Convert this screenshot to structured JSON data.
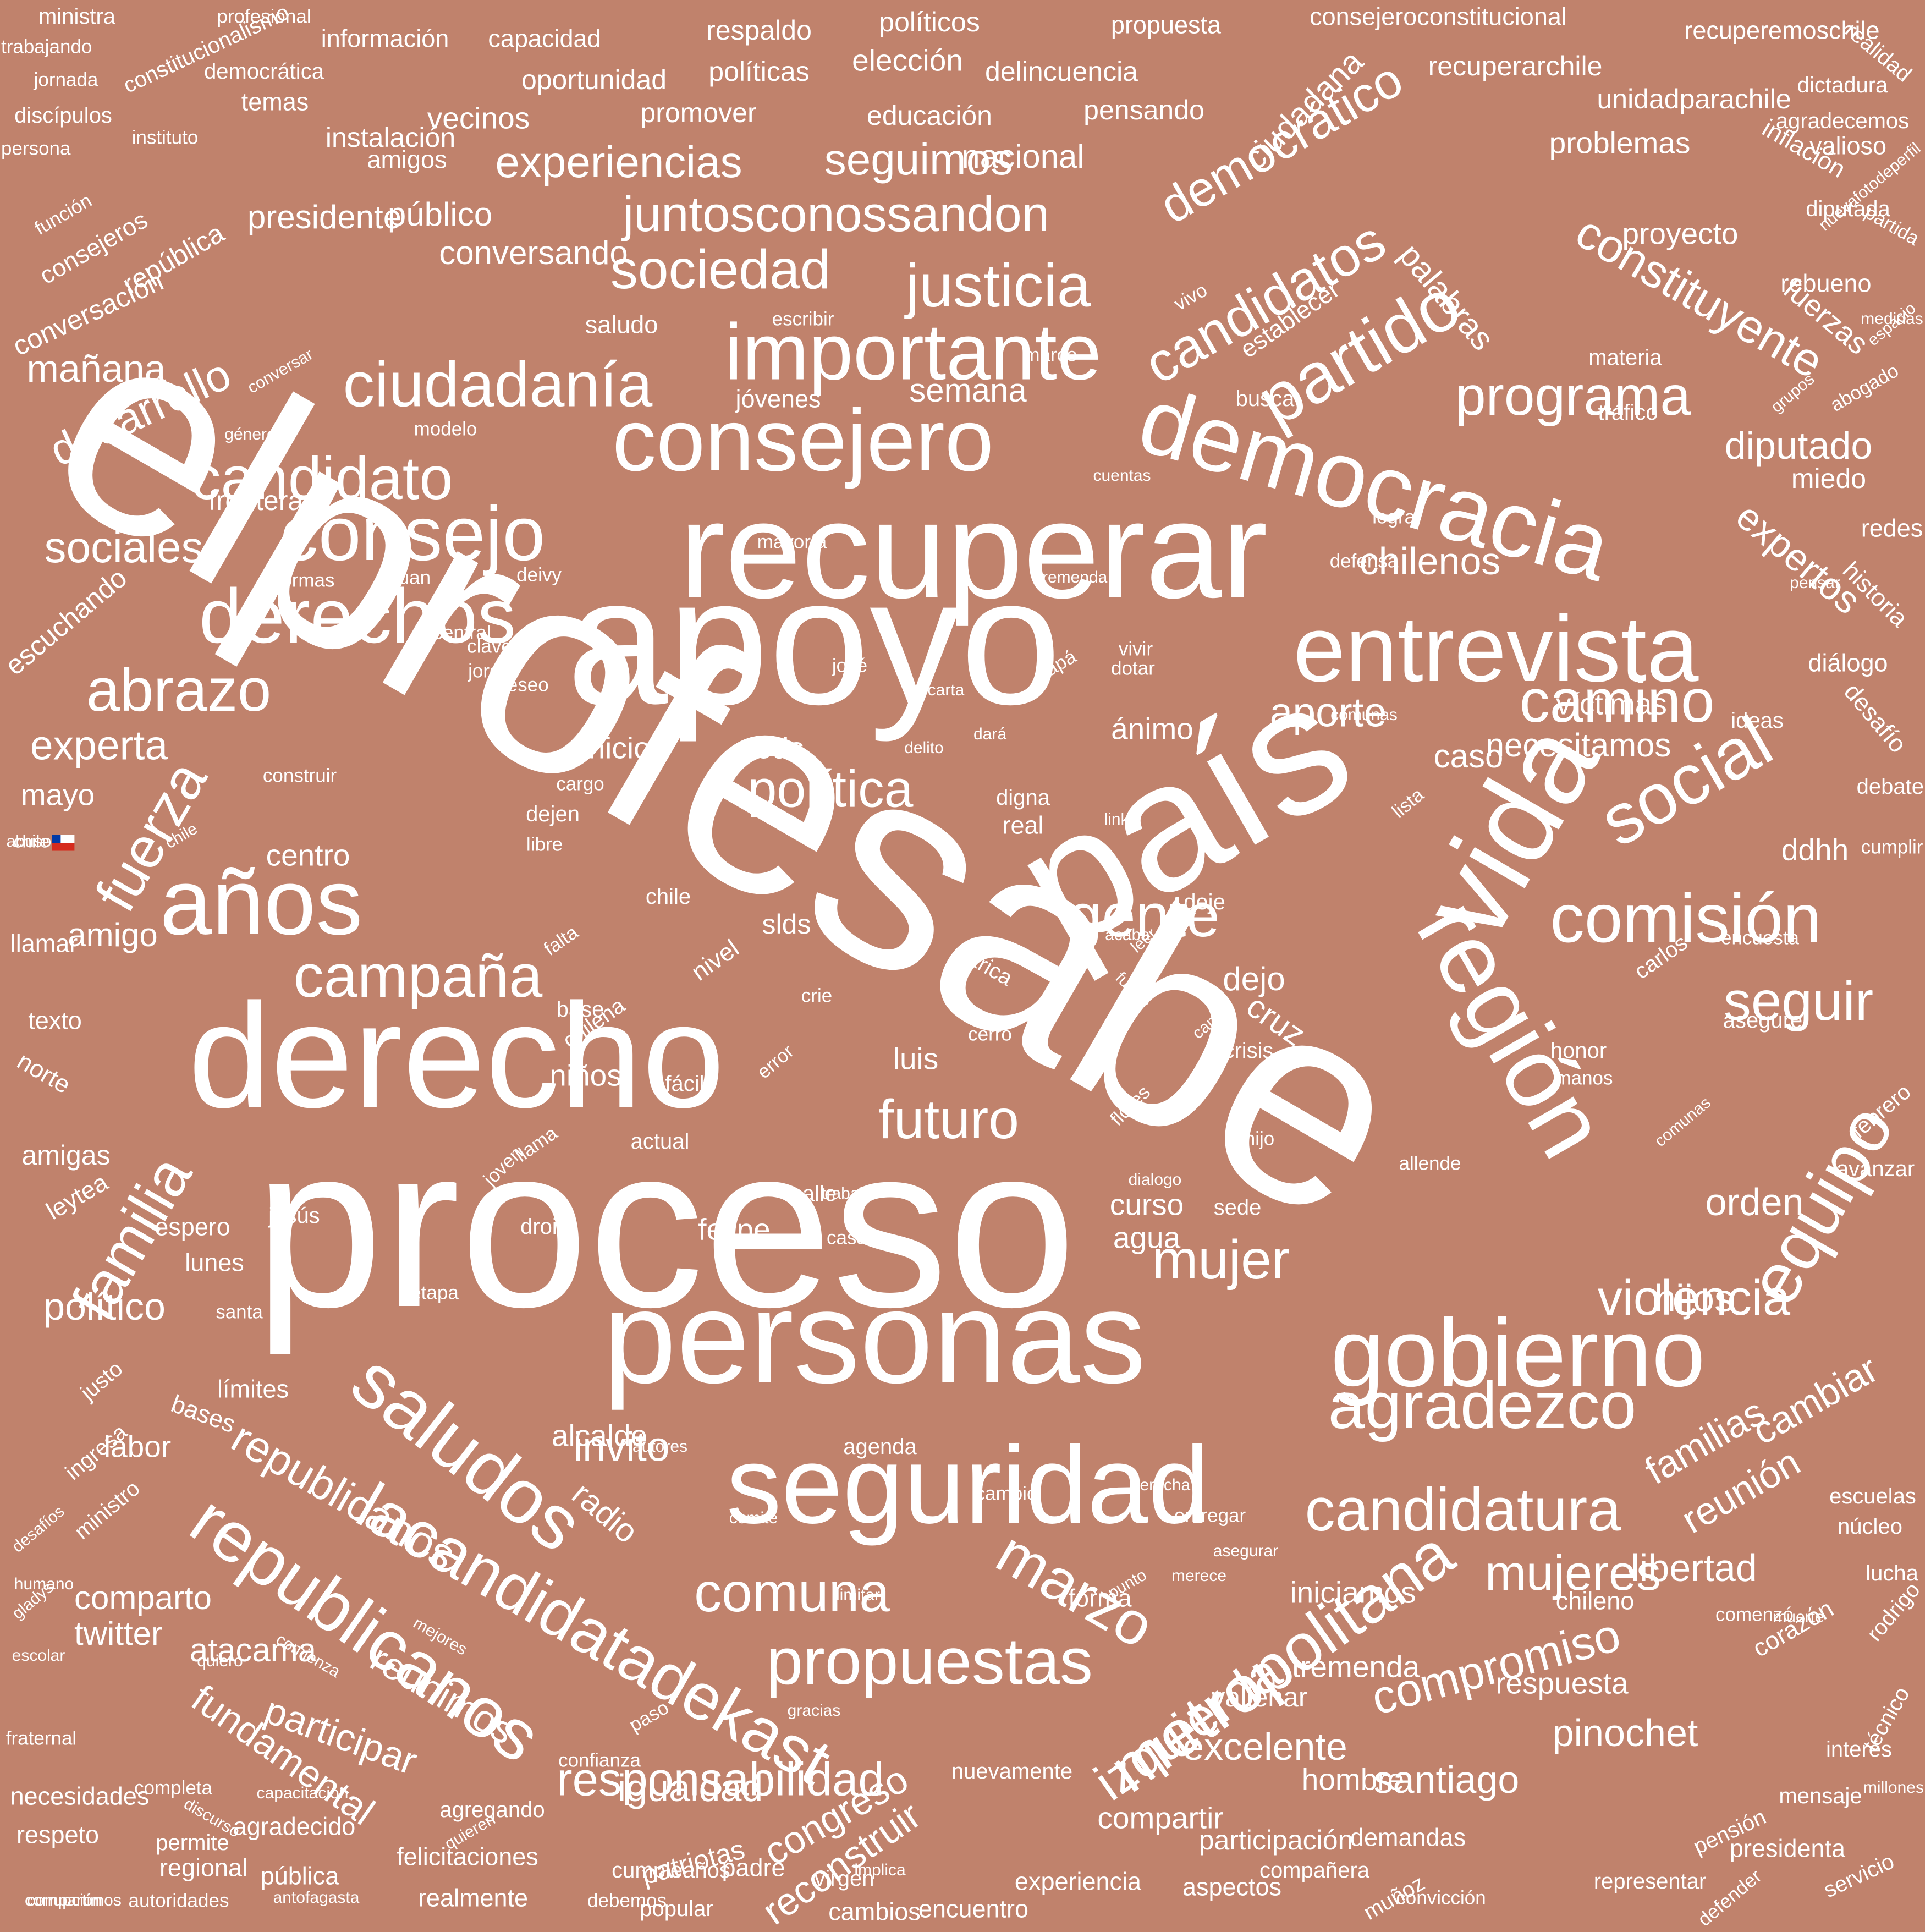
{
  "colors": {
    "background": "#c0826c",
    "text": "#ffffff"
  },
  "words": [
    "elprofesabe",
    "proceso",
    "apoyo",
    "recuperar",
    "país",
    "derecho",
    "personas",
    "consejero",
    "democracia",
    "seguridad",
    "vida",
    "región",
    "entrevista",
    "gobierno",
    "años",
    "social",
    "comisión",
    "consejo",
    "importante",
    "derechos",
    "agradezco",
    "saludos",
    "republicanos",
    "lacandidatadekast",
    "metropolitana",
    "propuestas",
    "candidatura",
    "equipo",
    "partido",
    "campaña",
    "ciudadanía",
    "candidato",
    "gente",
    "abrazo",
    "camino",
    "familia",
    "marzo",
    "comuna",
    "futuro",
    "candidatos",
    "responsabilidad",
    "juntosconossandon",
    "sociedad",
    "justicia",
    "política",
    "programa",
    "fuerza",
    "seguir",
    "violencia",
    "mujer",
    "compromiso",
    "izquierda",
    "mujeres",
    "constituyente",
    "democrático",
    "experiencias",
    "seguimos",
    "republicanos",
    "invito",
    "experta",
    "desarrollo",
    "sociales",
    "chilenos",
    "aporte",
    "mañana",
    "diputado",
    "expertos",
    "reunimos",
    "participar",
    "fundamental",
    "excelente",
    "reconstruir",
    "congreso",
    "igualdad",
    "santiago",
    "pinochet",
    "libertad",
    "hijos",
    "político",
    "orden",
    "cambiar",
    "familias",
    "reunión",
    "twitter",
    "atacama",
    "comparto",
    "radio",
    "alcalde",
    "semana",
    "caso",
    "dejo",
    "cruz",
    "niños",
    "palabras",
    "ciudadana",
    "nacional",
    "conversando",
    "frontera",
    "mayo",
    "amigo",
    "ddhh",
    "necesitamos",
    "proyecto",
    "fuerzas",
    "víctimas",
    "problemas",
    "unidadparachile",
    "elección",
    "políticas",
    "respaldo",
    "políticos",
    "capacidad",
    "información",
    "propuesta",
    "consejeroconstitucional",
    "recuperemoschile",
    "recuperarchile",
    "delincuencia",
    "oportunidad",
    "promover",
    "educación",
    "pensando",
    "vecinos",
    "instalación",
    "temas",
    "democrática",
    "constitucionalismo",
    "profesional",
    "ministra",
    "trabajando",
    "jornada",
    "discípulos",
    "persona",
    "instituto",
    "función",
    "consejeros",
    "república",
    "conversación",
    "presidente",
    "público",
    "amigos",
    "saludo",
    "escribir",
    "establecer",
    "jóvenes",
    "busca",
    "marco",
    "materia",
    "tráfico",
    "rebueno",
    "diputada",
    "partida",
    "valioso",
    "inflación",
    "agradecemos",
    "realidad",
    "dictadura",
    "nuevafotodeperfil",
    "medidas",
    "espacio",
    "abogado",
    "grupos",
    "miedo",
    "redes",
    "historia",
    "diálogo",
    "desafío",
    "debate",
    "cumplir",
    "ideas",
    "encuesta",
    "carlos",
    "asegure",
    "honor",
    "manos",
    "comunas",
    "febrero",
    "avanzar",
    "allende",
    "hijo",
    "crisis",
    "canal",
    "fuerte",
    "leer",
    "acaba",
    "deje",
    "link",
    "real",
    "digna",
    "lista",
    "nivel",
    "chile",
    "slds",
    "base",
    "chilena",
    "falta",
    "arica",
    "cerro",
    "crie",
    "error",
    "flores",
    "luis",
    "fácil",
    "llama",
    "joven",
    "actual",
    "calle",
    "casa",
    "curso",
    "agua",
    "sede",
    "droit",
    "felipe",
    "jesús",
    "leytea",
    "espero",
    "lunes",
    "amigas",
    "norte",
    "texto",
    "llamar",
    "centro",
    "abusos",
    "chile",
    "construir",
    "libre",
    "dejen",
    "delito",
    "dará",
    "carta",
    "ánimo",
    "vivir",
    "dotar",
    "papá",
    "josé",
    "jorge",
    "clave",
    "deseo",
    "central",
    "escuchando",
    "formas",
    "juan",
    "deivy",
    "mayoría",
    "lograr",
    "defensa",
    "cuentas",
    "modelo",
    "género",
    "conversar",
    "vivo",
    "inicio",
    "tods",
    "cargo",
    "etapa",
    "santa",
    "límites",
    "bases",
    "labor",
    "justo",
    "ingresa",
    "ministro",
    "desafíos",
    "humano",
    "gladys",
    "escolar",
    "fraternal",
    "necesidades",
    "respeto",
    "compartimos",
    "corrupción",
    "autoridades",
    "regional",
    "permite",
    "antofagasta",
    "realmente",
    "cumpleaños",
    "debemos",
    "patriotas",
    "padre",
    "encuentro",
    "cambios",
    "experiencia",
    "aspectos",
    "compañera",
    "muñoz",
    "convicción",
    "representar",
    "defender",
    "servicio",
    "presidenta",
    "pensión",
    "mensaje",
    "millones",
    "interés",
    "técnico",
    "rodrigo",
    "lucha",
    "núcleo",
    "escuelas",
    "corazón",
    "respuesta",
    "chileno",
    "iniciamos",
    "tremenda",
    "vallenar",
    "nuevamente",
    "mejores",
    "comienza",
    "quiero",
    "demandas",
    "participación",
    "hombre",
    "compartir",
    "virgen",
    "implica",
    "capacitación",
    "discurso",
    "popular",
    "felicitaciones",
    "pública",
    "agradecido",
    "agregando",
    "completa",
    "quieren",
    "confianza",
    "paso",
    "forma",
    "punto",
    "merece",
    "limitar",
    "comité",
    "agenda",
    "cambio",
    "entregar",
    "comenzó",
    "muerte",
    "autores",
    "derecha",
    "asegurar",
    "tremenda",
    "comunas",
    "dialogo",
    "pensar",
    "trabajo",
    "gracias",
    "región",
    "muertes",
    "educación",
    "chile"
  ],
  "flag_word": "chile"
}
